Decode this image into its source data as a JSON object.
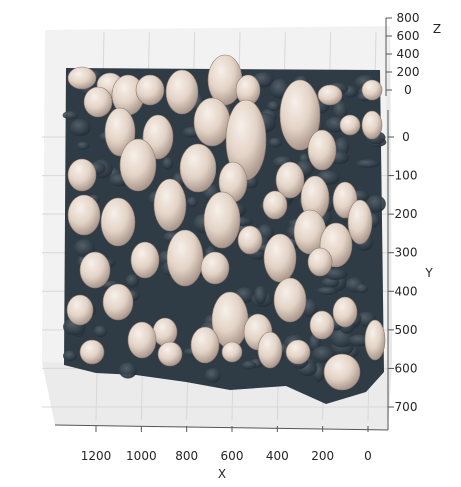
{
  "chart_data": {
    "type": "surface-3d",
    "subject": "point cloud of mushrooms",
    "xlabel": "X",
    "ylabel": "Y",
    "zlabel": "Z",
    "x_ticks": [
      "1200",
      "1000",
      "800",
      "600",
      "400",
      "200",
      "0"
    ],
    "y_ticks": [
      "0",
      "100",
      "200",
      "300",
      "400",
      "500",
      "600",
      "700"
    ],
    "z_ticks": [
      "800",
      "600",
      "400",
      "200",
      "0"
    ],
    "xlim": [
      0,
      1350
    ],
    "ylim": [
      -40,
      760
    ],
    "zlim": [
      0,
      800
    ],
    "x_inverted": true,
    "y_inverted": true,
    "grid": true,
    "colors": {
      "pane": "#f2f2f2",
      "grid": "#d8d8d8",
      "substrate": "#2f3b45",
      "mushroom_cap": "#e6d8cc"
    }
  }
}
